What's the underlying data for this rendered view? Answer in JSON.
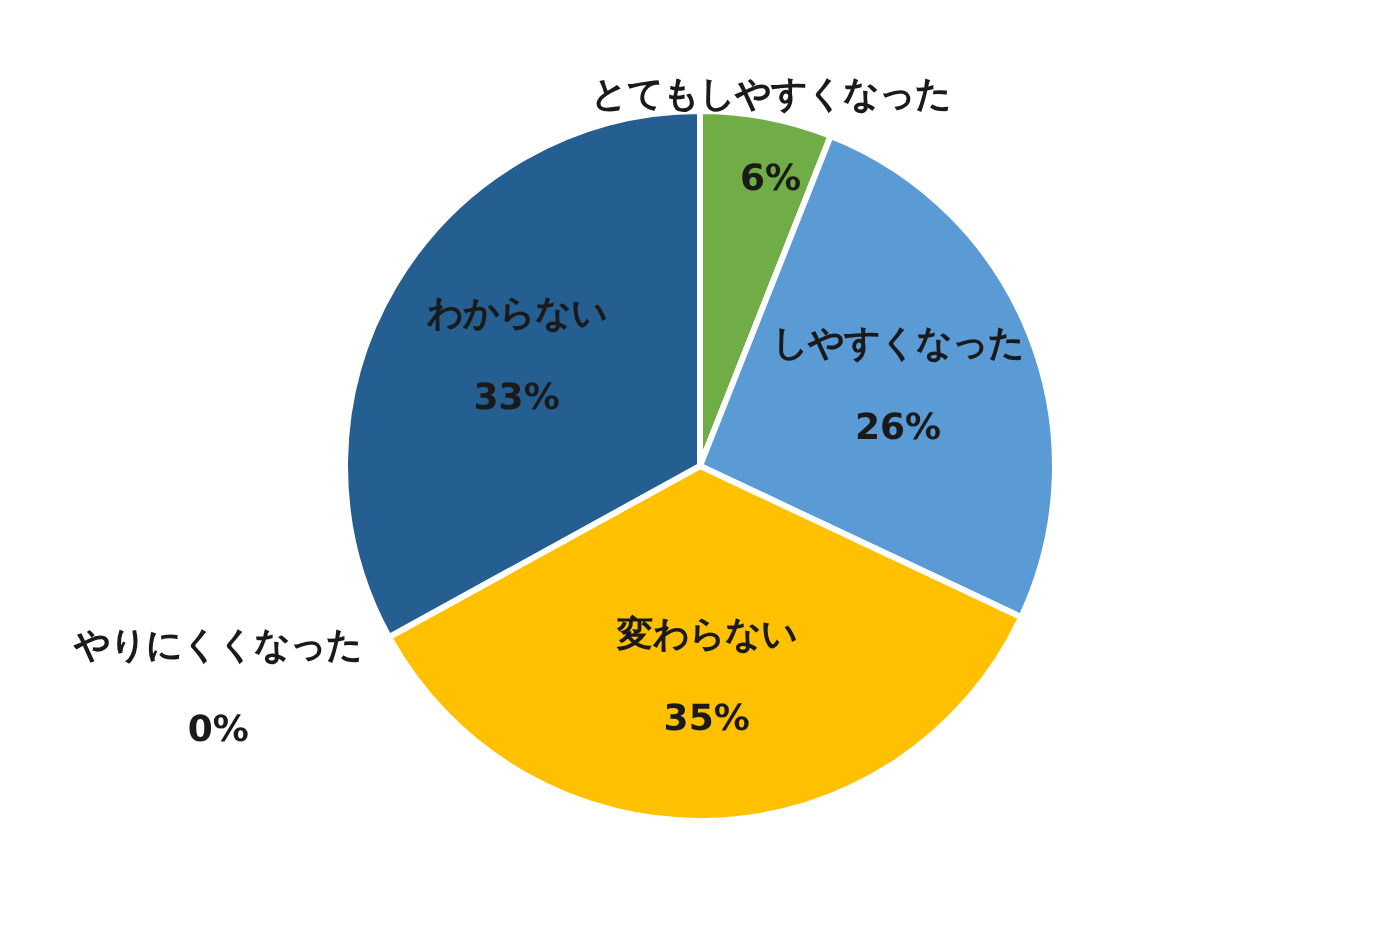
{
  "chart_data": {
    "type": "pie",
    "categories": [
      "とてもしやすくなった",
      "しやすくなった",
      "変わらない",
      "やりにくくなった",
      "わからない"
    ],
    "values": [
      6,
      26,
      35,
      0,
      33
    ],
    "colors": [
      "#70ad47",
      "#5b9bd5",
      "#ffc000",
      "#ed7d31",
      "#255e91"
    ],
    "value_labels": [
      "6%",
      "26%",
      "35%",
      "0%",
      "33%"
    ],
    "legend": false
  }
}
